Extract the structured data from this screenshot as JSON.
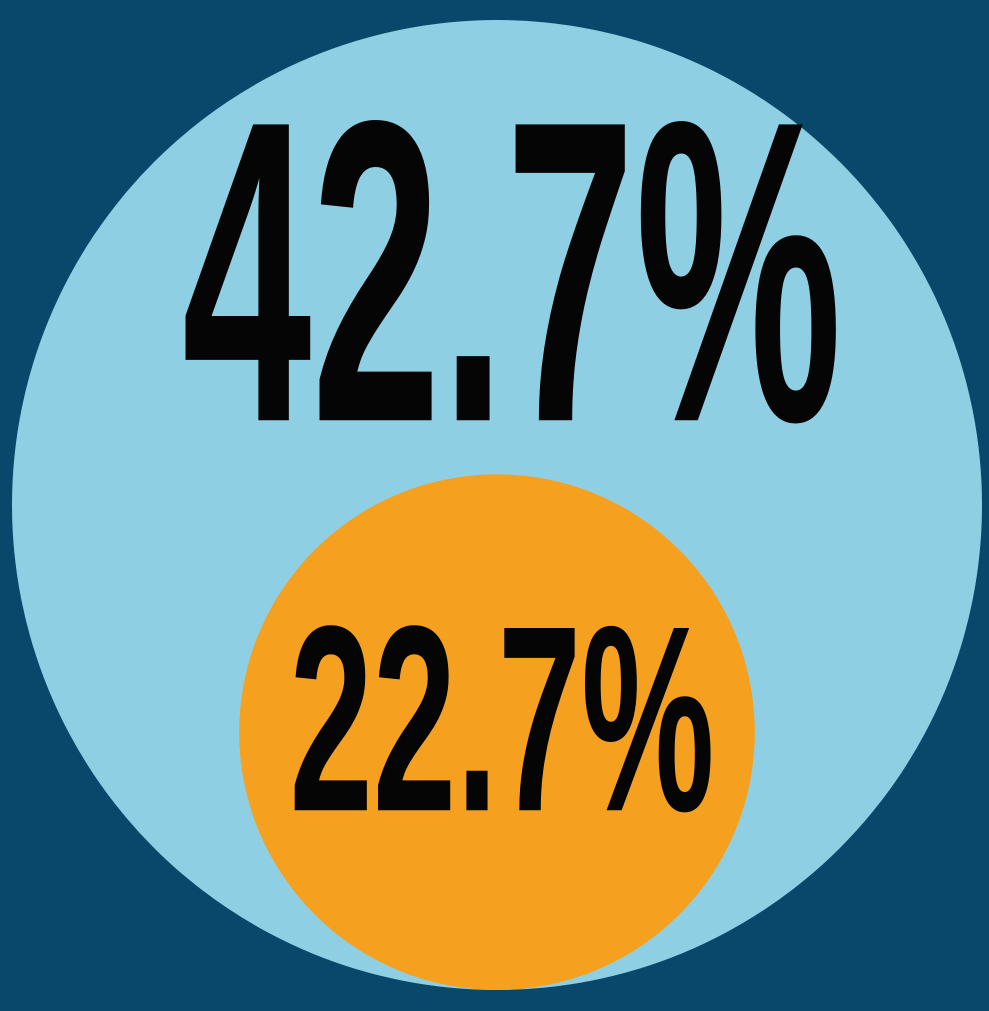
{
  "chart_data": {
    "type": "bubble",
    "values": [
      42.7,
      22.7
    ],
    "value_labels": [
      "42.7%",
      "22.7%"
    ],
    "colors": [
      "#8fcfe3",
      "#f6a01f"
    ],
    "background": "#0a486b"
  }
}
